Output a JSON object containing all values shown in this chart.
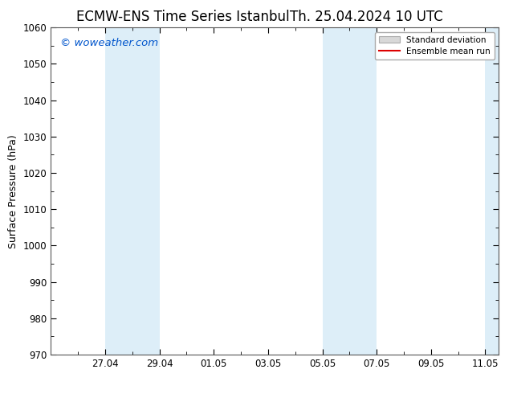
{
  "title": "ECMW-ENS Time Series Istanbul",
  "title2": "Th. 25.04.2024 10 UTC",
  "ylabel": "Surface Pressure (hPa)",
  "ylim": [
    970,
    1060
  ],
  "yticks": [
    970,
    980,
    990,
    1000,
    1010,
    1020,
    1030,
    1040,
    1050,
    1060
  ],
  "xlim_start": 0,
  "xlim_end": 16.5,
  "xtick_labels": [
    "27.04",
    "29.04",
    "01.05",
    "03.05",
    "05.05",
    "07.05",
    "09.05",
    "11.05"
  ],
  "xtick_positions": [
    2,
    4,
    6,
    8,
    10,
    12,
    14,
    16
  ],
  "shaded_bands": [
    {
      "x_start": 2,
      "x_end": 4
    },
    {
      "x_start": 10,
      "x_end": 12
    },
    {
      "x_start": 16,
      "x_end": 16.5
    }
  ],
  "band_color": "#ddeef8",
  "background_color": "#ffffff",
  "watermark": "© woweather.com",
  "watermark_color": "#0055cc",
  "legend_std_label": "Standard deviation",
  "legend_mean_label": "Ensemble mean run",
  "legend_std_facecolor": "#d8d8d8",
  "legend_std_edgecolor": "#aaaaaa",
  "legend_mean_color": "#dd0000",
  "tick_fontsize": 8.5,
  "title_fontsize": 12,
  "ylabel_fontsize": 9
}
